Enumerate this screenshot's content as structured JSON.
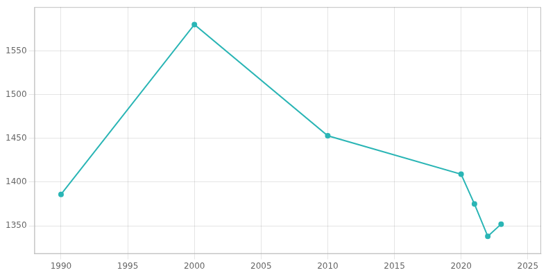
{
  "chart_data": {
    "type": "line",
    "x": [
      1990,
      2000,
      2010,
      2020,
      2021,
      2022,
      2023
    ],
    "values": [
      1386,
      1580,
      1453,
      1409,
      1375,
      1338,
      1352
    ],
    "color": "#2ab5b5",
    "marker": "circle",
    "xlim": [
      1988,
      2026
    ],
    "xticks": [
      1990,
      1995,
      2000,
      2005,
      2010,
      2015,
      2020,
      2025
    ],
    "ylim": [
      1318,
      1600
    ],
    "yticks": [
      1350,
      1400,
      1450,
      1500,
      1550
    ],
    "grid": true
  }
}
